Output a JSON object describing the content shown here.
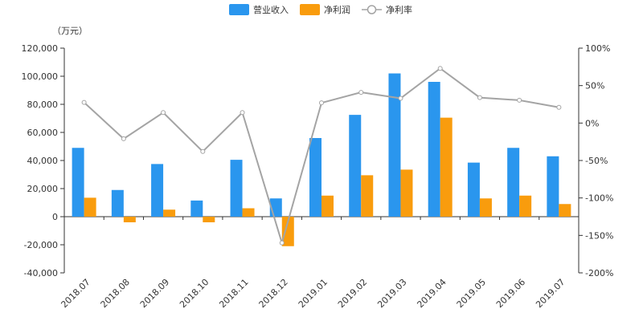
{
  "chart_data": {
    "type": "bar",
    "unit_label": "（万元）",
    "categories": [
      "2018.07",
      "2018.08",
      "2018.09",
      "2018.10",
      "2018.11",
      "2018.12",
      "2019.01",
      "2019.02",
      "2019.03",
      "2019.04",
      "2019.05",
      "2019.06",
      "2019.07"
    ],
    "series": [
      {
        "name": "营业收入",
        "type": "bar",
        "axis": "left",
        "color": "#2a96ee",
        "values": [
          49000,
          19000,
          37500,
          11500,
          40500,
          13000,
          56000,
          72500,
          102000,
          96000,
          38500,
          49000,
          43000
        ]
      },
      {
        "name": "净利润",
        "type": "bar",
        "axis": "left",
        "color": "#f99c0d",
        "values": [
          13500,
          -4000,
          5000,
          -4000,
          6000,
          -21000,
          15000,
          29500,
          33500,
          70500,
          13000,
          15000,
          9000
        ]
      },
      {
        "name": "净利率",
        "type": "line",
        "axis": "right",
        "color": "#a4a4a4",
        "values": [
          27.5,
          -21,
          14,
          -38,
          14,
          -160,
          27,
          41,
          33,
          73,
          34,
          30.5,
          21
        ]
      }
    ],
    "y_left": {
      "min": -40000,
      "max": 120000,
      "ticks": [
        "-40,000",
        "-20,000",
        "0",
        "20,000",
        "40,000",
        "60,000",
        "80,000",
        "100,000",
        "120,000"
      ],
      "tick_values": [
        -40000,
        -20000,
        0,
        20000,
        40000,
        60000,
        80000,
        100000,
        120000
      ]
    },
    "y_right": {
      "min": -200,
      "max": 100,
      "ticks": [
        "-200%",
        "-150%",
        "-100%",
        "-50%",
        "0%",
        "50%",
        "100%"
      ],
      "tick_values": [
        -200,
        -150,
        -100,
        -50,
        0,
        50,
        100
      ]
    },
    "legend_position": "top-center",
    "grid": false
  }
}
